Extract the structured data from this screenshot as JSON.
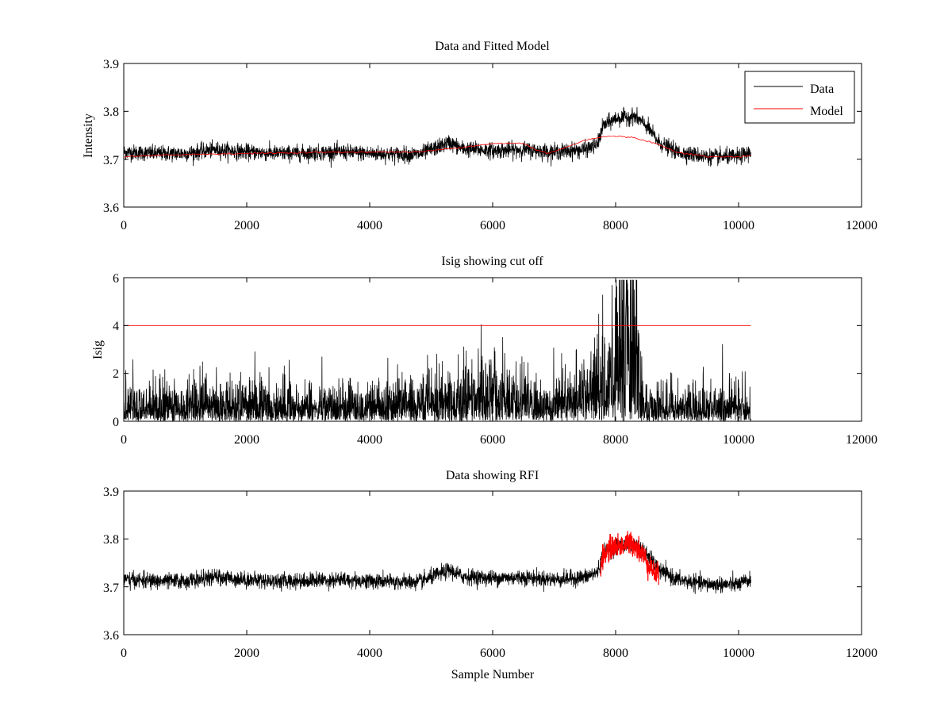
{
  "chart_data": [
    {
      "type": "line",
      "title": "Data and Fitted Model",
      "xlabel": "",
      "ylabel": "Intensity",
      "xlim": [
        0,
        12000
      ],
      "ylim": [
        3.6,
        3.9
      ],
      "xticks": [
        "0",
        "2000",
        "4000",
        "6000",
        "8000",
        "10000",
        "12000"
      ],
      "yticks": [
        "3.6",
        "3.7",
        "3.8",
        "3.9"
      ],
      "legend": {
        "position": "top-right",
        "entries": [
          "Data",
          "Model"
        ]
      },
      "series": [
        {
          "name": "Data",
          "color": "#000000",
          "style": "noisy",
          "noise": 0.008,
          "x": [
            0,
            500,
            1000,
            1500,
            2000,
            2500,
            3000,
            3500,
            4000,
            4500,
            4800,
            5000,
            5300,
            5500,
            6000,
            6500,
            6700,
            7000,
            7500,
            7700,
            7800,
            8000,
            8300,
            8500,
            8700,
            9000,
            9500,
            10000,
            10200
          ],
          "y": [
            3.715,
            3.712,
            3.712,
            3.72,
            3.715,
            3.712,
            3.713,
            3.715,
            3.712,
            3.71,
            3.71,
            3.72,
            3.735,
            3.722,
            3.718,
            3.72,
            3.718,
            3.715,
            3.72,
            3.73,
            3.77,
            3.785,
            3.79,
            3.77,
            3.735,
            3.715,
            3.705,
            3.705,
            3.715
          ]
        },
        {
          "name": "Model",
          "color": "#ff0000",
          "style": "smooth",
          "x": [
            0,
            1000,
            2000,
            3000,
            4000,
            4800,
            5500,
            6000,
            6500,
            6700,
            6900,
            7200,
            7500,
            7800,
            8000,
            8300,
            8600,
            9000,
            9500,
            10000,
            10200
          ],
          "y": [
            3.705,
            3.71,
            3.712,
            3.714,
            3.715,
            3.715,
            3.725,
            3.733,
            3.733,
            3.72,
            3.712,
            3.725,
            3.74,
            3.747,
            3.748,
            3.745,
            3.735,
            3.715,
            3.705,
            3.705,
            3.708
          ]
        }
      ]
    },
    {
      "type": "line",
      "title": "Isig showing cut off",
      "xlabel": "",
      "ylabel": "Isig",
      "xlim": [
        0,
        12000
      ],
      "ylim": [
        0,
        6
      ],
      "xticks": [
        "0",
        "2000",
        "4000",
        "6000",
        "8000",
        "10000",
        "12000"
      ],
      "yticks": [
        "0",
        "2",
        "4",
        "6"
      ],
      "series": [
        {
          "name": "Isig",
          "color": "#000000",
          "style": "spiky",
          "x": [
            0,
            1000,
            2000,
            3000,
            4000,
            4600,
            5000,
            5500,
            6000,
            6500,
            6800,
            7200,
            7600,
            7800,
            8000,
            8200,
            8300,
            8400,
            8500,
            9000,
            10000,
            10200
          ],
          "y": [
            1.0,
            1.1,
            1.1,
            1.0,
            1.0,
            1.3,
            1.2,
            1.6,
            1.8,
            1.3,
            0.9,
            1.6,
            2.0,
            2.6,
            3.6,
            4.6,
            4.2,
            2.0,
            0.9,
            1.0,
            1.0,
            1.0
          ]
        },
        {
          "name": "Cut off",
          "color": "#ff0000",
          "style": "line",
          "x": [
            0,
            10200
          ],
          "y": [
            4,
            4
          ]
        }
      ]
    },
    {
      "type": "line",
      "title": "Data showing RFI",
      "xlabel": "Sample Number",
      "ylabel": "",
      "xlim": [
        0,
        12000
      ],
      "ylim": [
        3.6,
        3.9
      ],
      "xticks": [
        "0",
        "2000",
        "4000",
        "6000",
        "8000",
        "10000",
        "12000"
      ],
      "yticks": [
        "3.6",
        "3.7",
        "3.8",
        "3.9"
      ],
      "series": [
        {
          "name": "Data",
          "color": "#000000",
          "style": "noisy",
          "noise": 0.008,
          "x": [
            0,
            500,
            1000,
            1500,
            2000,
            2500,
            3000,
            3500,
            4000,
            4500,
            4800,
            5000,
            5300,
            5500,
            6000,
            6500,
            6700,
            7000,
            7500,
            7700,
            7800,
            8000,
            8300,
            8500,
            8700,
            9000,
            9500,
            10000,
            10200
          ],
          "y": [
            3.715,
            3.712,
            3.712,
            3.72,
            3.715,
            3.712,
            3.713,
            3.715,
            3.712,
            3.71,
            3.71,
            3.72,
            3.735,
            3.722,
            3.718,
            3.72,
            3.718,
            3.715,
            3.72,
            3.73,
            3.77,
            3.785,
            3.79,
            3.77,
            3.735,
            3.715,
            3.705,
            3.705,
            3.715
          ]
        },
        {
          "name": "RFI",
          "color": "#ff0000",
          "style": "noisy",
          "noise": 0.012,
          "x": [
            7750,
            7800,
            7900,
            8000,
            8100,
            8200,
            8300,
            8400,
            8500,
            8600,
            8700
          ],
          "y": [
            3.74,
            3.765,
            3.78,
            3.785,
            3.785,
            3.79,
            3.79,
            3.775,
            3.755,
            3.735,
            3.72
          ]
        }
      ]
    }
  ]
}
